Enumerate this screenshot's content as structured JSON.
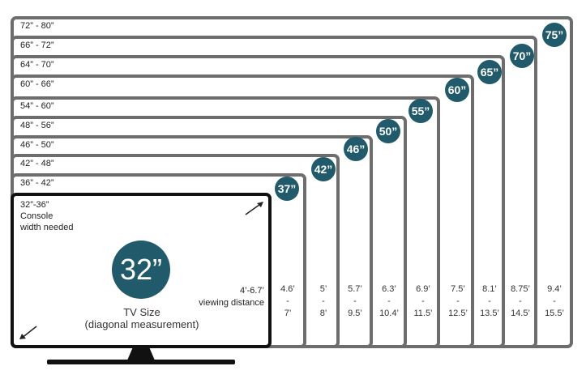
{
  "frames": [
    {
      "range": "72” - 80”",
      "badge": "75”",
      "distance": [
        "9.4’",
        "-",
        "15.5’"
      ]
    },
    {
      "range": "66” - 72”",
      "badge": "70”",
      "distance": [
        "8.75’",
        "-",
        "14.5’"
      ]
    },
    {
      "range": "64” - 70”",
      "badge": "65”",
      "distance": [
        "8.1’",
        "-",
        "13.5’"
      ]
    },
    {
      "range": "60” - 66”",
      "badge": "60”",
      "distance": [
        "7.5’",
        "-",
        "12.5’"
      ]
    },
    {
      "range": "54” - 60”",
      "badge": "55”",
      "distance": [
        "6.9’",
        "-",
        "11.5’"
      ]
    },
    {
      "range": "48” - 56”",
      "badge": "50”",
      "distance": [
        "6.3’",
        "-",
        "10.4’"
      ]
    },
    {
      "range": "46” - 50”",
      "badge": "46”",
      "distance": [
        "5.7’",
        "-",
        "9.5’"
      ]
    },
    {
      "range": "42” - 48”",
      "badge": "42”",
      "distance": [
        "5’",
        "-",
        "8’"
      ]
    },
    {
      "range": "36” - 42”",
      "badge": "37”",
      "distance": [
        "4.6’",
        "-",
        "7’"
      ]
    }
  ],
  "main_tv": {
    "range_line1": "32”-36”",
    "range_line2": "Console",
    "range_line3": "width needed",
    "badge": "32”",
    "distance": "4’-6.7’",
    "distance_label": "viewing distance",
    "size_label": "TV Size",
    "size_sub": "(diagonal measurement)"
  },
  "colors": {
    "badge": "#215a6b",
    "frame": "#6d6d6d",
    "tv_border": "#111111"
  }
}
